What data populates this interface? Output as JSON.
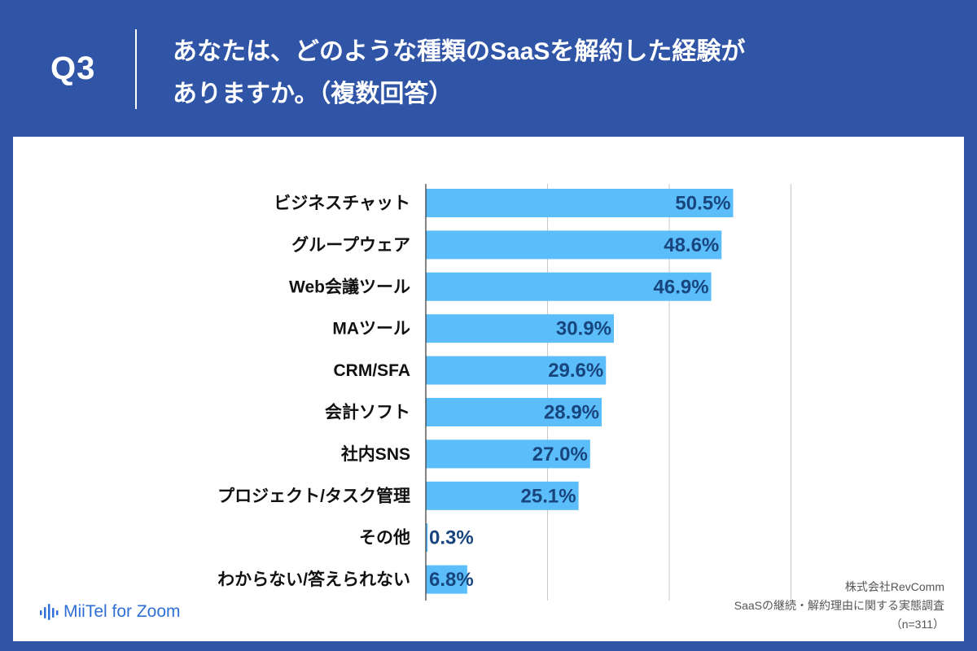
{
  "header": {
    "q_label": "Q3",
    "question_line1": "あなたは、どのような種類のSaaSを解約した経験が",
    "question_line2": "ありますか。（複数回答）"
  },
  "chart_data": {
    "type": "bar",
    "orientation": "horizontal",
    "categories": [
      "ビジネスチャット",
      "グループウェア",
      "Web会議ツール",
      "MAツール",
      "CRM/SFA",
      "会計ソフト",
      "社内SNS",
      "プロジェクト/タスク管理",
      "その他",
      "わからない/答えられない"
    ],
    "values": [
      50.5,
      48.6,
      46.9,
      30.9,
      29.6,
      28.9,
      27.0,
      25.1,
      0.3,
      6.8
    ],
    "value_labels": [
      "50.5%",
      "48.6%",
      "46.9%",
      "30.9%",
      "29.6%",
      "28.9%",
      "27.0%",
      "25.1%",
      "0.3%",
      "6.8%"
    ],
    "unit": "%",
    "xlim": [
      0,
      60
    ],
    "grid_values": [
      20,
      40,
      60
    ],
    "bar_color": "#5bbdf9",
    "label_color": "#18457e"
  },
  "footer": {
    "logo_text": "MiiTel for Zoom",
    "source_line1": "株式会社RevComm",
    "source_line2": "SaaSの継続・解約理由に関する実態調査",
    "source_line3": "（n=311）"
  },
  "colors": {
    "background": "#3155a6",
    "panel": "#ffffff",
    "accent": "#2f6fd6"
  }
}
